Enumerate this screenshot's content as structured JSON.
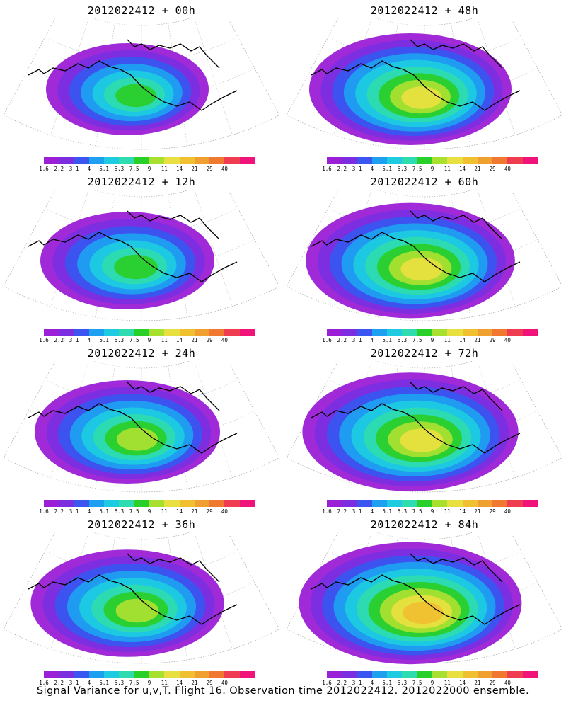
{
  "panels": [
    {
      "title": "2012022412 + 00h",
      "intensity": 0.25
    },
    {
      "title": "2012022412 + 48h",
      "intensity": 0.6
    },
    {
      "title": "2012022412 + 12h",
      "intensity": 0.35
    },
    {
      "title": "2012022412 + 60h",
      "intensity": 0.66
    },
    {
      "title": "2012022412 + 24h",
      "intensity": 0.45
    },
    {
      "title": "2012022412 + 72h",
      "intensity": 0.72
    },
    {
      "title": "2012022412 + 36h",
      "intensity": 0.52
    },
    {
      "title": "2012022412 + 84h",
      "intensity": 0.78
    }
  ],
  "colorbar": {
    "labels": [
      "1.6",
      "2.2",
      "3.1",
      "4",
      "5.1",
      "6.3",
      "7.5",
      "9",
      "11",
      "14",
      "21",
      "29",
      "40"
    ],
    "colors": [
      "#9b1fd6",
      "#7a2ee0",
      "#3a55f0",
      "#1ea0f0",
      "#1ecbe0",
      "#2edcb0",
      "#2ad02a",
      "#a8e030",
      "#e8e040",
      "#f0c030",
      "#f0a030",
      "#f07830",
      "#f03c50",
      "#f0147a"
    ]
  },
  "caption": "Signal Variance for u,v,T. Flight 16. Observation time 2012022412. 2012022000 ensemble."
}
